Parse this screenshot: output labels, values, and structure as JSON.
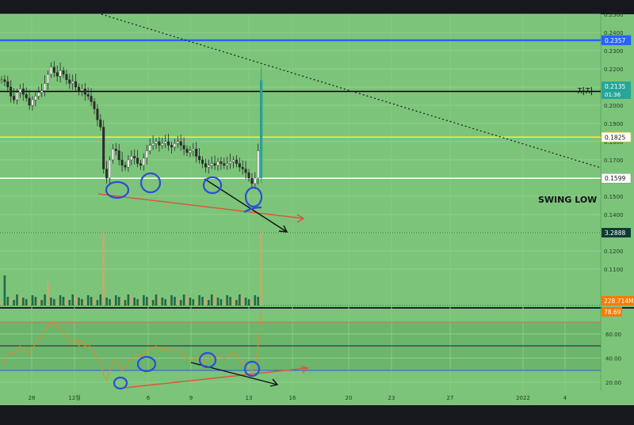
{
  "chart_data": {
    "type": "candlestick",
    "price_axis": {
      "ticks": [
        "0.2500",
        "0.2400",
        "0.2300",
        "0.2200",
        "0.2100",
        "0.2000",
        "0.1900",
        "0.1800",
        "0.1700",
        "0.1600",
        "0.1500",
        "0.1400",
        "0.1300",
        "0.1200",
        "0.1100"
      ],
      "ylim": [
        0.105,
        0.25
      ]
    },
    "rsi_axis": {
      "ticks": [
        "60.00",
        "40.00",
        "20.00"
      ],
      "ylim": [
        13,
        93
      ]
    },
    "time_axis": {
      "labels": [
        "28",
        "12월",
        "6",
        "9",
        "13",
        "16",
        "20",
        "23",
        "27",
        "2022",
        "4"
      ]
    },
    "horizontal_levels": [
      {
        "price": 0.2357,
        "label": "0.2357",
        "color": "#2962ff"
      },
      {
        "price": 0.2076,
        "label": "0.2076",
        "color": "#000000",
        "annotation": "지지"
      },
      {
        "price": 0.1825,
        "label": "0.1825",
        "color": "#ffeb3b"
      },
      {
        "price": 0.1599,
        "label": "0.1599",
        "color": "#ffffff",
        "annotation": "SWING LOW"
      }
    ],
    "current_price": {
      "value": "0.2135",
      "countdown": "01:36",
      "color": "#26a69a"
    },
    "badges": {
      "volume_ma": "3.2888",
      "volume": "228.714M",
      "rsi": "78.69"
    },
    "close_series": [
      0.214,
      0.213,
      0.21,
      0.205,
      0.203,
      0.207,
      0.209,
      0.206,
      0.204,
      0.2,
      0.203,
      0.205,
      0.207,
      0.208,
      0.212,
      0.217,
      0.221,
      0.218,
      0.216,
      0.219,
      0.217,
      0.214,
      0.212,
      0.213,
      0.21,
      0.208,
      0.209,
      0.206,
      0.205,
      0.202,
      0.198,
      0.192,
      0.188,
      0.165,
      0.16,
      0.17,
      0.176,
      0.175,
      0.17,
      0.167,
      0.166,
      0.17,
      0.172,
      0.171,
      0.168,
      0.167,
      0.171,
      0.175,
      0.178,
      0.179,
      0.18,
      0.178,
      0.179,
      0.18,
      0.178,
      0.177,
      0.179,
      0.18,
      0.178,
      0.176,
      0.174,
      0.175,
      0.176,
      0.172,
      0.17,
      0.168,
      0.166,
      0.167,
      0.168,
      0.167,
      0.169,
      0.168,
      0.167,
      0.168,
      0.169,
      0.17,
      0.168,
      0.166,
      0.165,
      0.163,
      0.16,
      0.157,
      0.16,
      0.175,
      0.2135
    ],
    "rsi_series": [
      35,
      38,
      42,
      45,
      44,
      48,
      50,
      47,
      46,
      44,
      48,
      52,
      55,
      57,
      62,
      68,
      66,
      70,
      66,
      63,
      61,
      58,
      55,
      52,
      56,
      50,
      54,
      49,
      52,
      48,
      44,
      40,
      38,
      26,
      22,
      30,
      36,
      38,
      34,
      30,
      32,
      37,
      40,
      42,
      43,
      41,
      44,
      46,
      47,
      48,
      50,
      48,
      46,
      48,
      47,
      46,
      45,
      46,
      45,
      42,
      40,
      38,
      39,
      41,
      40,
      38,
      36,
      39,
      41,
      40,
      42,
      41,
      40,
      41,
      43,
      45,
      42,
      38,
      35,
      33,
      31,
      30,
      32,
      50,
      78.69
    ],
    "annotations": {
      "circles": 9,
      "trendlines": 4,
      "label_support": "지지",
      "label_swing_low": "SWING LOW"
    }
  }
}
